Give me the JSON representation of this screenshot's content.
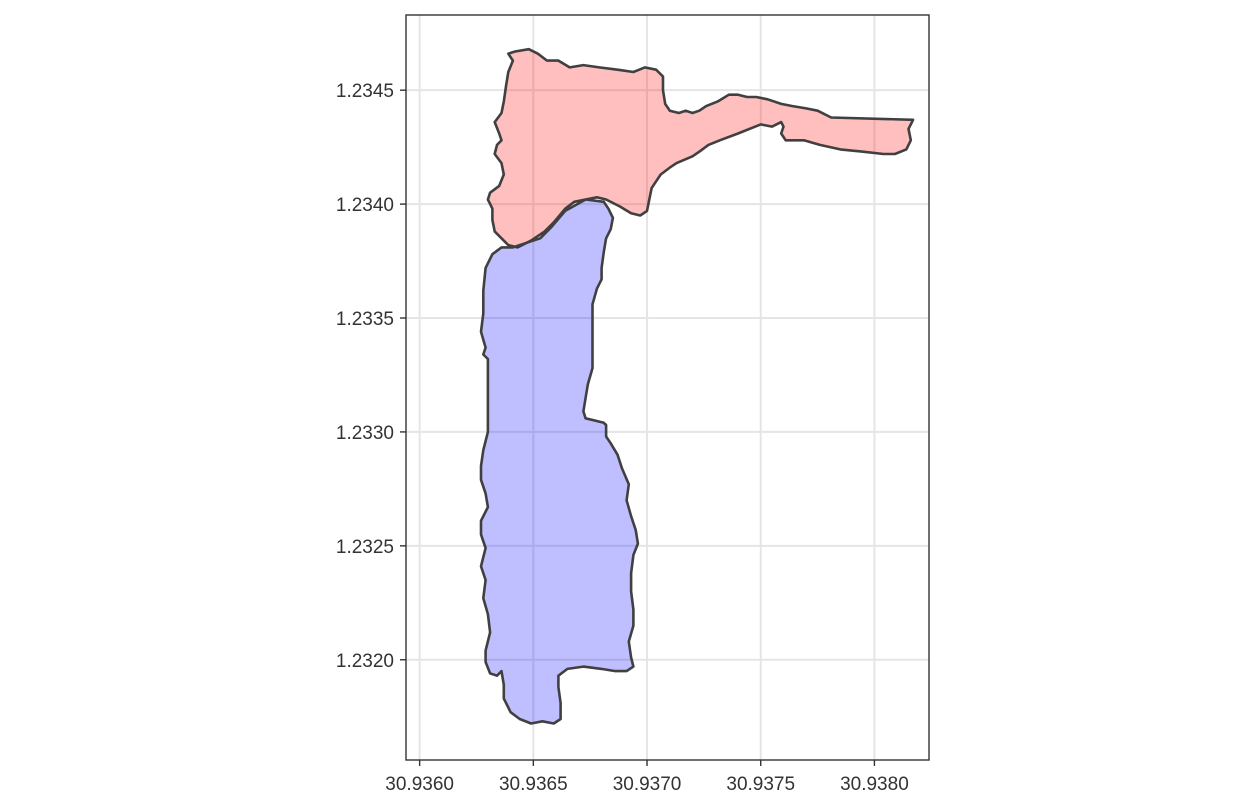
{
  "chart_data": {
    "type": "map",
    "title": "",
    "xlabel": "",
    "ylabel": "",
    "x_ticks": [
      "30.9360",
      "30.9365",
      "30.9370",
      "30.9375",
      "30.9380"
    ],
    "y_ticks": [
      "1.2320",
      "1.2325",
      "1.2330",
      "1.2335",
      "1.2340",
      "1.2345"
    ],
    "xlim": [
      30.93594,
      30.93824
    ],
    "ylim": [
      1.23156,
      1.23483
    ],
    "grid": true,
    "fill_alpha": 0.25,
    "polygons": [
      {
        "id": "north-polygon",
        "fill": "#ff0000",
        "points": [
          [
            30.93642,
            1.23467
          ],
          [
            30.93648,
            1.23468
          ],
          [
            30.93652,
            1.23466
          ],
          [
            30.93656,
            1.23463
          ],
          [
            30.93661,
            1.23463
          ],
          [
            30.93666,
            1.2346
          ],
          [
            30.93672,
            1.23461
          ],
          [
            30.93679,
            1.2346
          ],
          [
            30.93687,
            1.23459
          ],
          [
            30.93694,
            1.23458
          ],
          [
            30.93699,
            1.2346
          ],
          [
            30.93704,
            1.23459
          ],
          [
            30.93707,
            1.23456
          ],
          [
            30.93707,
            1.2345
          ],
          [
            30.93708,
            1.23444
          ],
          [
            30.9371,
            1.23441
          ],
          [
            30.93714,
            1.2344
          ],
          [
            30.93717,
            1.23441
          ],
          [
            30.9372,
            1.2344
          ],
          [
            30.93723,
            1.23441
          ],
          [
            30.93726,
            1.23443
          ],
          [
            30.93731,
            1.23445
          ],
          [
            30.93736,
            1.23448
          ],
          [
            30.9374,
            1.23448
          ],
          [
            30.93744,
            1.23447
          ],
          [
            30.93748,
            1.23447
          ],
          [
            30.93753,
            1.23446
          ],
          [
            30.93759,
            1.23444
          ],
          [
            30.93764,
            1.23443
          ],
          [
            30.9377,
            1.23442
          ],
          [
            30.93775,
            1.23441
          ],
          [
            30.93781,
            1.23438
          ],
          [
            30.93817,
            1.23437
          ],
          [
            30.93815,
            1.23433
          ],
          [
            30.93816,
            1.23428
          ],
          [
            30.93814,
            1.23424
          ],
          [
            30.93809,
            1.23422
          ],
          [
            30.93804,
            1.23422
          ],
          [
            30.93795,
            1.23423
          ],
          [
            30.93785,
            1.23424
          ],
          [
            30.93776,
            1.23426
          ],
          [
            30.93769,
            1.23428
          ],
          [
            30.93764,
            1.23428
          ],
          [
            30.93761,
            1.23428
          ],
          [
            30.93759,
            1.23431
          ],
          [
            30.9376,
            1.23434
          ],
          [
            30.93759,
            1.23436
          ],
          [
            30.93755,
            1.23434
          ],
          [
            30.9375,
            1.23435
          ],
          [
            30.9374,
            1.23431
          ],
          [
            30.93732,
            1.23428
          ],
          [
            30.93727,
            1.23426
          ],
          [
            30.93723,
            1.23423
          ],
          [
            30.9372,
            1.23421
          ],
          [
            30.93713,
            1.23418
          ],
          [
            30.9371,
            1.23416
          ],
          [
            30.93706,
            1.23413
          ],
          [
            30.93704,
            1.2341
          ],
          [
            30.93702,
            1.23407
          ],
          [
            30.93701,
            1.23402
          ],
          [
            30.937,
            1.23397
          ],
          [
            30.93697,
            1.23395
          ],
          [
            30.93693,
            1.23396
          ],
          [
            30.93688,
            1.23399
          ],
          [
            30.93682,
            1.23402
          ],
          [
            30.93678,
            1.23403
          ],
          [
            30.93673,
            1.23402
          ],
          [
            30.93668,
            1.23401
          ],
          [
            30.93664,
            1.23398
          ],
          [
            30.93659,
            1.23392
          ],
          [
            30.93655,
            1.23388
          ],
          [
            30.93649,
            1.23384
          ],
          [
            30.93643,
            1.23381
          ],
          [
            30.93639,
            1.23382
          ],
          [
            30.93636,
            1.23385
          ],
          [
            30.93633,
            1.23388
          ],
          [
            30.93632,
            1.23393
          ],
          [
            30.93632,
            1.23398
          ],
          [
            30.9363,
            1.23402
          ],
          [
            30.93631,
            1.23405
          ],
          [
            30.93635,
            1.23408
          ],
          [
            30.93637,
            1.23413
          ],
          [
            30.93636,
            1.23418
          ],
          [
            30.93633,
            1.23422
          ],
          [
            30.93634,
            1.23426
          ],
          [
            30.93636,
            1.23428
          ],
          [
            30.93635,
            1.23431
          ],
          [
            30.93633,
            1.23436
          ],
          [
            30.93636,
            1.2344
          ],
          [
            30.93637,
            1.23445
          ],
          [
            30.93638,
            1.23452
          ],
          [
            30.93639,
            1.23458
          ],
          [
            30.93641,
            1.23463
          ],
          [
            30.93639,
            1.23466
          ]
        ]
      },
      {
        "id": "south-polygon",
        "fill": "#0000ff",
        "points": [
          [
            30.93629,
            1.23337
          ],
          [
            30.93628,
            1.23334
          ],
          [
            30.9363,
            1.23332
          ],
          [
            30.9363,
            1.23327
          ],
          [
            30.9363,
            1.23318
          ],
          [
            30.9363,
            1.2331
          ],
          [
            30.9363,
            1.233
          ],
          [
            30.93628,
            1.23292
          ],
          [
            30.93627,
            1.23285
          ],
          [
            30.93627,
            1.23279
          ],
          [
            30.93629,
            1.23273
          ],
          [
            30.9363,
            1.23267
          ],
          [
            30.93627,
            1.23261
          ],
          [
            30.93627,
            1.23255
          ],
          [
            30.93629,
            1.23249
          ],
          [
            30.93627,
            1.23241
          ],
          [
            30.93629,
            1.23235
          ],
          [
            30.93628,
            1.23227
          ],
          [
            30.9363,
            1.2322
          ],
          [
            30.93631,
            1.23212
          ],
          [
            30.93629,
            1.23204
          ],
          [
            30.93629,
            1.23199
          ],
          [
            30.93631,
            1.23194
          ],
          [
            30.93634,
            1.23193
          ],
          [
            30.93636,
            1.23195
          ],
          [
            30.93637,
            1.23189
          ],
          [
            30.93637,
            1.23183
          ],
          [
            30.9364,
            1.23177
          ],
          [
            30.93644,
            1.23174
          ],
          [
            30.93649,
            1.23172
          ],
          [
            30.93654,
            1.23173
          ],
          [
            30.93659,
            1.23172
          ],
          [
            30.93662,
            1.23174
          ],
          [
            30.93662,
            1.23181
          ],
          [
            30.93661,
            1.23188
          ],
          [
            30.93661,
            1.23193
          ],
          [
            30.93665,
            1.23196
          ],
          [
            30.93672,
            1.23197
          ],
          [
            30.9368,
            1.23196
          ],
          [
            30.93686,
            1.23195
          ],
          [
            30.93691,
            1.23195
          ],
          [
            30.93694,
            1.23197
          ],
          [
            30.93693,
            1.23201
          ],
          [
            30.93692,
            1.23208
          ],
          [
            30.93694,
            1.23215
          ],
          [
            30.93694,
            1.23222
          ],
          [
            30.93693,
            1.2323
          ],
          [
            30.93693,
            1.23238
          ],
          [
            30.93694,
            1.23246
          ],
          [
            30.93696,
            1.23251
          ],
          [
            30.93695,
            1.23257
          ],
          [
            30.93693,
            1.23263
          ],
          [
            30.93691,
            1.2327
          ],
          [
            30.93692,
            1.23277
          ],
          [
            30.93689,
            1.23284
          ],
          [
            30.93687,
            1.2329
          ],
          [
            30.93684,
            1.23295
          ],
          [
            30.93682,
            1.23298
          ],
          [
            30.93682,
            1.23303
          ],
          [
            30.93681,
            1.23304
          ],
          [
            30.93677,
            1.23305
          ],
          [
            30.93673,
            1.23306
          ],
          [
            30.93672,
            1.23309
          ],
          [
            30.93673,
            1.23315
          ],
          [
            30.93674,
            1.23321
          ],
          [
            30.93676,
            1.23328
          ],
          [
            30.93676,
            1.23338
          ],
          [
            30.93676,
            1.23346
          ],
          [
            30.93676,
            1.23356
          ],
          [
            30.93678,
            1.23363
          ],
          [
            30.9368,
            1.23367
          ],
          [
            30.9368,
            1.23372
          ],
          [
            30.93681,
            1.23379
          ],
          [
            30.93682,
            1.23385
          ],
          [
            30.93684,
            1.23389
          ],
          [
            30.93685,
            1.23394
          ],
          [
            30.93683,
            1.23398
          ],
          [
            30.93681,
            1.23401
          ],
          [
            30.93673,
            1.23402
          ],
          [
            30.93664,
            1.23397
          ],
          [
            30.93658,
            1.2339
          ],
          [
            30.93653,
            1.23385
          ],
          [
            30.93647,
            1.23383
          ],
          [
            30.93641,
            1.23381
          ],
          [
            30.93636,
            1.23381
          ],
          [
            30.93632,
            1.23378
          ],
          [
            30.93629,
            1.23372
          ],
          [
            30.93628,
            1.23362
          ],
          [
            30.93628,
            1.23352
          ],
          [
            30.93627,
            1.23344
          ]
        ]
      }
    ]
  }
}
